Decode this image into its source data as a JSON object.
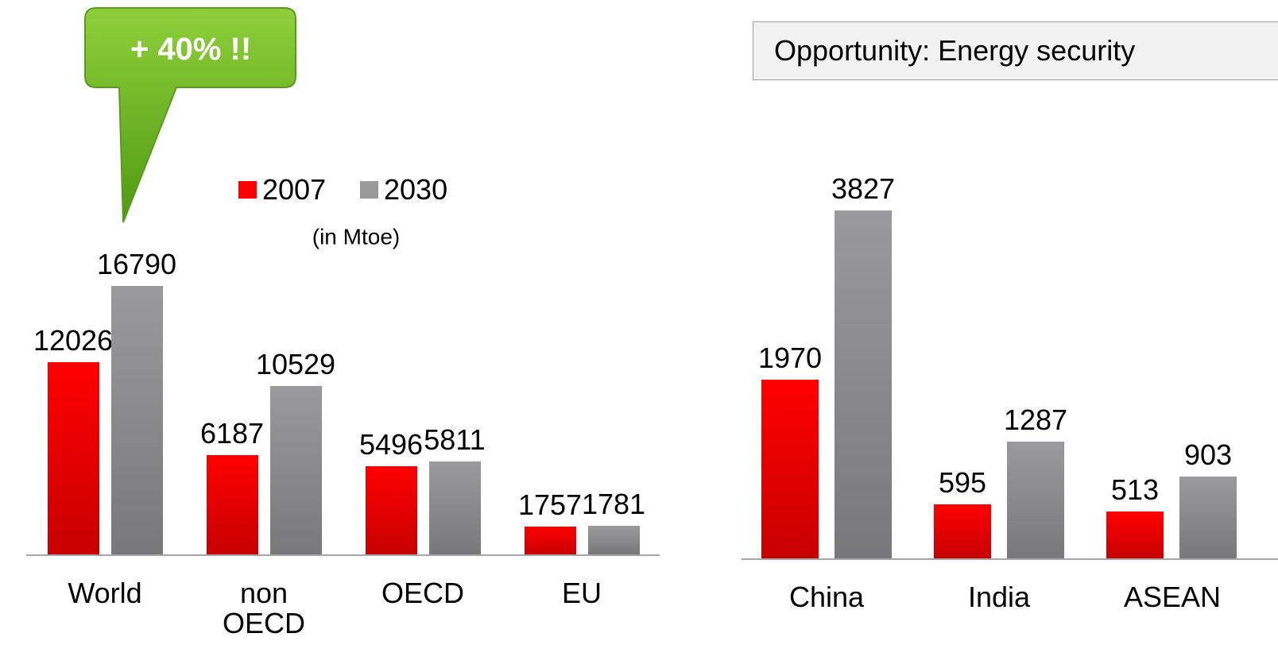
{
  "chart_data": [
    {
      "type": "bar",
      "annotation": "+ 40% !!",
      "subtitle": "(in Mtoe)",
      "categories": [
        "World",
        "non OECD",
        "OECD",
        "EU"
      ],
      "series": [
        {
          "name": "2007",
          "color": "#ff0000",
          "values": [
            12026,
            6187,
            5496,
            1757
          ]
        },
        {
          "name": "2030",
          "color": "#9a9a9c",
          "values": [
            16790,
            10529,
            5811,
            1781
          ]
        }
      ],
      "legend": "top"
    },
    {
      "type": "bar",
      "title": "Opportunity: Energy security",
      "categories": [
        "China",
        "India",
        "ASEAN"
      ],
      "series": [
        {
          "color": "#ff0000",
          "values": [
            1970,
            595,
            513
          ]
        },
        {
          "color": "#9a9a9c",
          "values": [
            3827,
            1287,
            903
          ]
        }
      ]
    }
  ]
}
